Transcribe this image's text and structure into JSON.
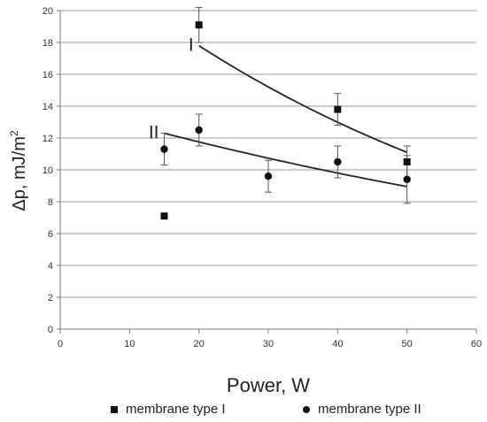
{
  "chart_data": {
    "type": "scatter",
    "xlabel": "Power, W",
    "ylabel_main": "Δp, mJ/m",
    "ylabel_sup": "2",
    "xlim": [
      0,
      60
    ],
    "ylim": [
      0,
      20
    ],
    "x_ticks": [
      0,
      10,
      20,
      30,
      40,
      50,
      60
    ],
    "y_ticks": [
      0,
      2,
      4,
      6,
      8,
      10,
      12,
      14,
      16,
      18,
      20
    ],
    "grid": "horizontal",
    "legend_position": "bottom",
    "series": [
      {
        "name": "membrane type I",
        "marker": "square",
        "color": "#111111",
        "points": [
          {
            "x": 15,
            "y": 7.1
          },
          {
            "x": 20,
            "y": 19.1,
            "err": 1.1
          },
          {
            "x": 40,
            "y": 13.8,
            "err": 1.0
          },
          {
            "x": 50,
            "y": 10.5,
            "err": 1.0
          }
        ],
        "trend_label": "I",
        "trend_x": [
          20,
          50
        ],
        "trend_y_start": 17.8,
        "trend_y_end": 11.1
      },
      {
        "name": "membrane type II",
        "marker": "circle",
        "color": "#111111",
        "points": [
          {
            "x": 15,
            "y": 11.3,
            "err": 1.0
          },
          {
            "x": 20,
            "y": 12.5,
            "err": 1.0
          },
          {
            "x": 30,
            "y": 9.6,
            "err": 1.0
          },
          {
            "x": 40,
            "y": 10.5,
            "err": 1.0
          },
          {
            "x": 50,
            "y": 9.4,
            "err": 1.5
          }
        ],
        "trend_label": "II",
        "trend_x": [
          15,
          50
        ],
        "trend_y_start": 12.3,
        "trend_y_end": 8.95
      }
    ]
  }
}
